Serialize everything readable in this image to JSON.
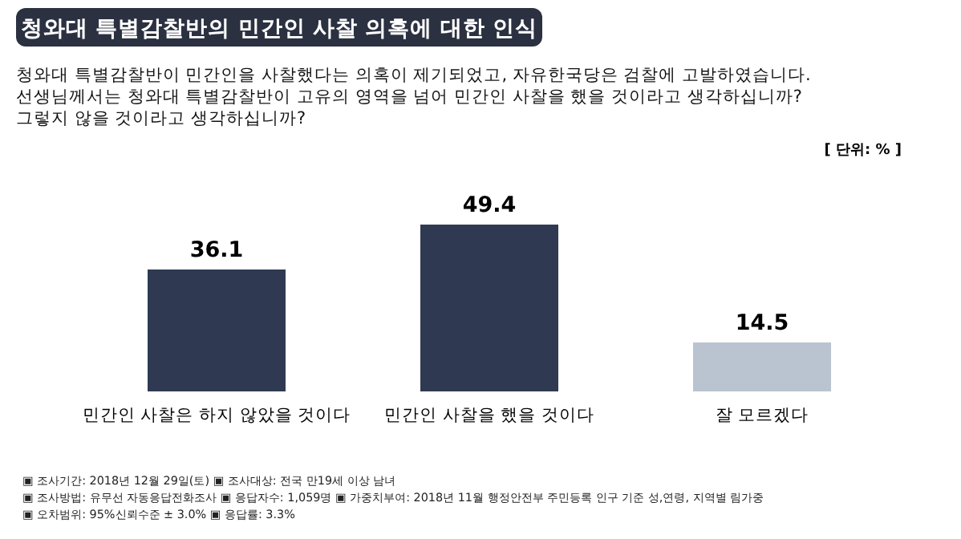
{
  "chart_data": {
    "type": "bar",
    "title": "청와대 특별감찰반의 민간인 사찰 의혹에 대한 인식",
    "subtitle": "청와대 특별감찰반이 민간인을 사찰했다는 의혹이 제기되었고, 자유한국당은 검찰에 고발하였습니다.\n선생님께서는 청와대 특별감찰반이 고유의 영역을 넘어 민간인 사찰을 했을 것이라고 생각하십니까?\n그렇지 않을 것이라고 생각하십니까?",
    "categories": [
      "민간인 사찰은 하지 않았을 것이다",
      "민간인 사찰을 했을 것이다",
      "잘 모르겠다"
    ],
    "values": [
      36.1,
      49.4,
      14.5
    ],
    "colors": [
      "#2f3a52",
      "#2f3a52",
      "#b9c4d0"
    ],
    "data_labels": true,
    "annotations": [
      "[ 단위: % ]",
      "▣ 조사기간: 2018년 12월 29일(토) ▣ 조사대상: 전국 만19세 이상 남녀",
      "▣ 조사방법: 유무선 자동응답전화조사 ▣ 응답자수: 1,059명 ▣ 가중치부여: 2018년 11월 행정안전부 주민등록 인구 기준 성,연령, 지역별 림가중",
      "▣ 오차범위: 95%신뢰수준 ± 3.0% ▣ 응답률: 3.3%"
    ]
  }
}
